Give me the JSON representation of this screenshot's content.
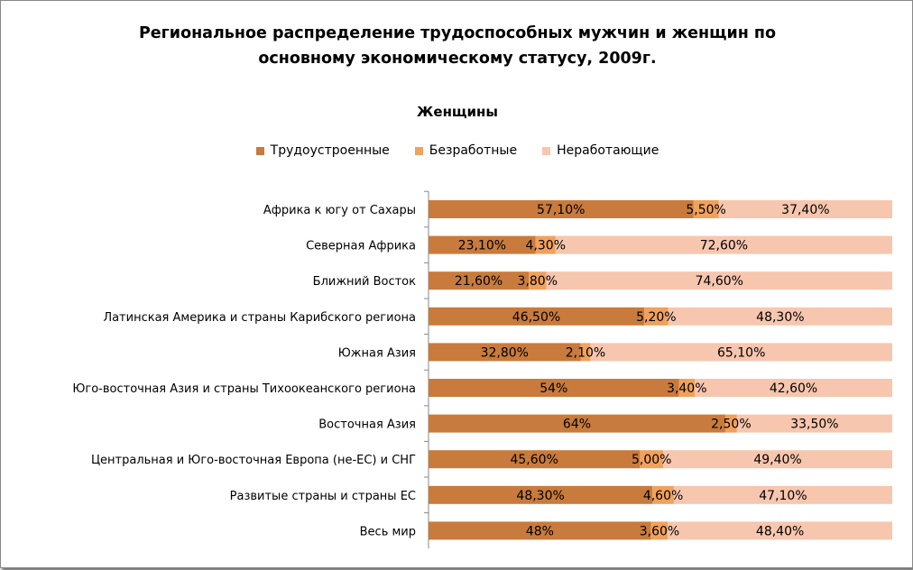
{
  "chart_data": {
    "type": "bar",
    "orientation": "horizontal",
    "stacked": "percent",
    "title_lines": [
      "Региональное распределение трудоспособных мужчин и женщин по",
      "основному экономическому статусу, 2009г."
    ],
    "subtitle": "Женщины",
    "legend_position": "top",
    "categories": [
      "Африка к югу от Сахары",
      "Северная Африка",
      "Ближний Восток",
      "Латинская Америка и страны Карибского региона",
      "Южная Азия",
      "Юго-восточная Азия и страны Тихоокеанского региона",
      "Восточная Азия",
      "Центральная и Юго-восточная Европа (не-ЕС) и СНГ",
      "Развитые страны и страны ЕС",
      "Весь мир"
    ],
    "series": [
      {
        "name": "Трудоустроенные",
        "color": "#C87B3C",
        "values": [
          57.1,
          23.1,
          21.6,
          46.5,
          32.8,
          54,
          64,
          45.6,
          48.3,
          48
        ],
        "labels": [
          "57,10%",
          "23,10%",
          "21,60%",
          "46,50%",
          "32,80%",
          "54%",
          "64%",
          "45,60%",
          "48,30%",
          "48%"
        ]
      },
      {
        "name": "Безработные",
        "color": "#F0A15C",
        "values": [
          5.5,
          4.3,
          3.8,
          5.2,
          2.1,
          3.4,
          2.5,
          5.0,
          4.6,
          3.6
        ],
        "labels": [
          "5,50%",
          "4,30%",
          "3,80%",
          "5,20%",
          "2,10%",
          "3,40%",
          "2,50%",
          "5,00%",
          "4,60%",
          "3,60%"
        ]
      },
      {
        "name": "Неработающие",
        "color": "#F7C6AE",
        "values": [
          37.4,
          72.6,
          74.6,
          48.3,
          65.1,
          42.6,
          33.5,
          49.4,
          47.1,
          48.4
        ],
        "labels": [
          "37,40%",
          "72,60%",
          "74,60%",
          "48,30%",
          "65,10%",
          "42,60%",
          "33,50%",
          "49,40%",
          "47,10%",
          "48,40%"
        ]
      }
    ],
    "gridlines": false
  }
}
